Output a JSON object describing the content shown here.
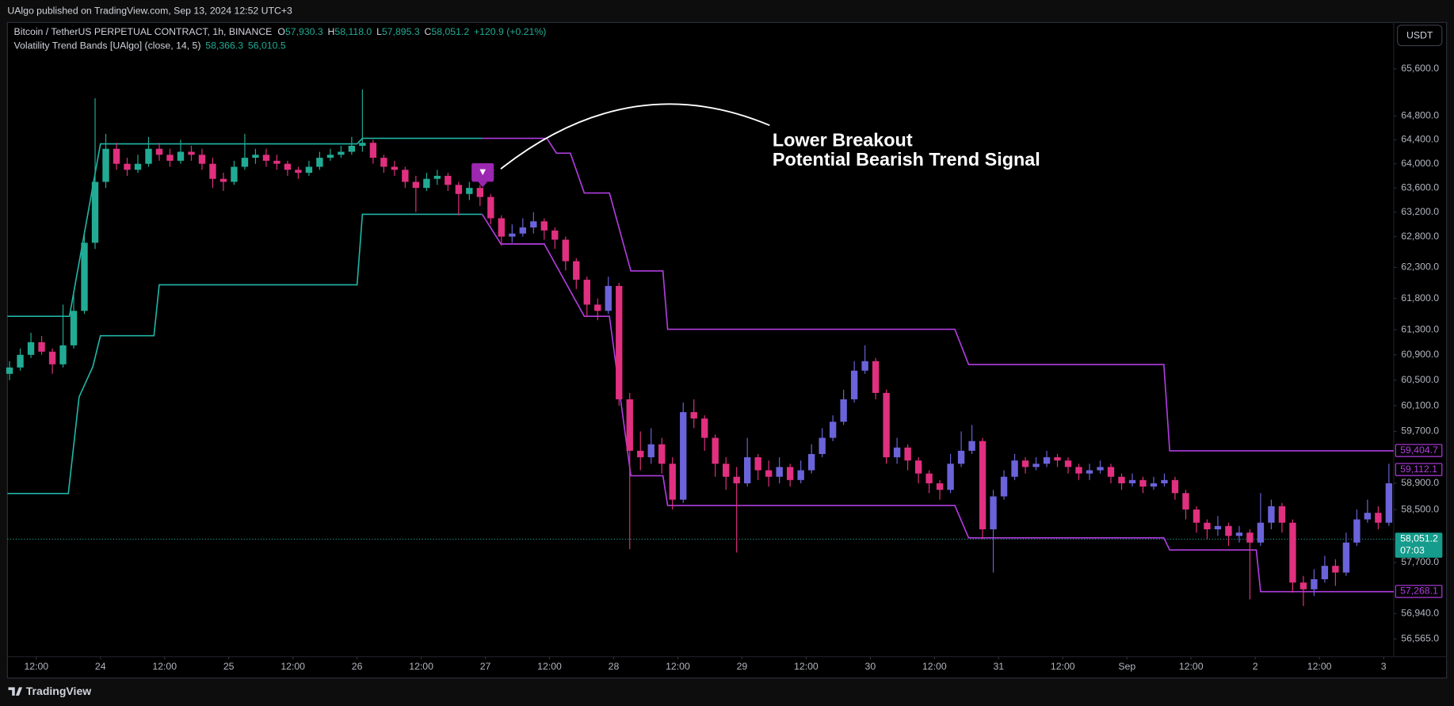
{
  "header": "UAlgo published on TradingView.com, Sep 13, 2024 12:52 UTC+3",
  "footer": "TradingView",
  "currency_button": "USDT",
  "chart_data": {
    "type": "candlestick",
    "title": "Bitcoin / TetherUS PERPETUAL CONTRACT, 1h, BINANCE",
    "ohlc": [
      {
        "label": "O",
        "value": "57,930.3"
      },
      {
        "label": "H",
        "value": "58,118.0"
      },
      {
        "label": "L",
        "value": "57,895.3"
      },
      {
        "label": "C",
        "value": "58,051.2"
      }
    ],
    "change": "+120.9 (+0.21%)",
    "indicator": {
      "title": "Volatility Trend Bands [UAlgo] (close, 14, 5)",
      "values": [
        "58,366.3",
        "56,010.5"
      ]
    },
    "log_scale": true,
    "grid": false,
    "up_color": "#22ab94",
    "up_color_after_signal": "#6b63d9",
    "down_color": "#e0307f",
    "xlim": [
      6.6,
      265.9
    ],
    "ylim": [
      56305,
      66395
    ],
    "xticks": [
      {
        "value": 12,
        "label": "12:00"
      },
      {
        "value": 24,
        "label": "24"
      },
      {
        "value": 36,
        "label": "12:00"
      },
      {
        "value": 48,
        "label": "25"
      },
      {
        "value": 60,
        "label": "12:00"
      },
      {
        "value": 72,
        "label": "26"
      },
      {
        "value": 84,
        "label": "12:00"
      },
      {
        "value": 96,
        "label": "27"
      },
      {
        "value": 108,
        "label": "12:00"
      },
      {
        "value": 120,
        "label": "28"
      },
      {
        "value": 132,
        "label": "12:00"
      },
      {
        "value": 144,
        "label": "29"
      },
      {
        "value": 156,
        "label": "12:00"
      },
      {
        "value": 168,
        "label": "30"
      },
      {
        "value": 180,
        "label": "12:00"
      },
      {
        "value": 192,
        "label": "31"
      },
      {
        "value": 204,
        "label": "12:00"
      },
      {
        "value": 216,
        "label": "Sep"
      },
      {
        "value": 228,
        "label": "12:00"
      },
      {
        "value": 240,
        "label": "2"
      },
      {
        "value": 252,
        "label": "12:00"
      },
      {
        "value": 264,
        "label": "3"
      }
    ],
    "yticks": [
      {
        "value": 65600,
        "label": "65,600.0"
      },
      {
        "value": 64800,
        "label": "64,800.0"
      },
      {
        "value": 64400,
        "label": "64,400.0"
      },
      {
        "value": 64000,
        "label": "64,000.0"
      },
      {
        "value": 63600,
        "label": "63,600.0"
      },
      {
        "value": 63200,
        "label": "63,200.0"
      },
      {
        "value": 62800,
        "label": "62,800.0"
      },
      {
        "value": 62300,
        "label": "62,300.0"
      },
      {
        "value": 61800,
        "label": "61,800.0"
      },
      {
        "value": 61300,
        "label": "61,300.0"
      },
      {
        "value": 60900,
        "label": "60,900.0"
      },
      {
        "value": 60500,
        "label": "60,500.0"
      },
      {
        "value": 60100,
        "label": "60,100.0"
      },
      {
        "value": 59700,
        "label": "59,700.0"
      },
      {
        "value": 58900,
        "label": "58,900.0"
      },
      {
        "value": 58500,
        "label": "58,500.0"
      },
      {
        "value": 57700,
        "label": "57,700.0"
      },
      {
        "value": 56940,
        "label": "56,940.0"
      },
      {
        "value": 56565,
        "label": "56,565.0"
      }
    ],
    "x": [
      7,
      9,
      11,
      13,
      15,
      17,
      19,
      21,
      23,
      25,
      27,
      29,
      31,
      33,
      35,
      37,
      39,
      41,
      43,
      45,
      47,
      49,
      51,
      53,
      55,
      57,
      59,
      61,
      63,
      65,
      67,
      69,
      71,
      73,
      75,
      77,
      79,
      81,
      83,
      85,
      87,
      89,
      91,
      93,
      95,
      97,
      99,
      101,
      103,
      105,
      107,
      109,
      111,
      113,
      115,
      117,
      119,
      121,
      123,
      125,
      127,
      129,
      131,
      133,
      135,
      137,
      139,
      141,
      143,
      145,
      147,
      149,
      151,
      153,
      155,
      157,
      159,
      161,
      163,
      165,
      167,
      169,
      171,
      173,
      175,
      177,
      179,
      181,
      183,
      185,
      187,
      189,
      191,
      193,
      195,
      197,
      199,
      201,
      203,
      205,
      207,
      209,
      211,
      213,
      215,
      217,
      219,
      221,
      223,
      225,
      227,
      229,
      231,
      233,
      235,
      237,
      239,
      241,
      243,
      245,
      247,
      249,
      251,
      253,
      255,
      257,
      259,
      261,
      263,
      265
    ],
    "candles": [
      [
        60600,
        60800,
        60500,
        60700
      ],
      [
        60700,
        61000,
        60650,
        60900
      ],
      [
        60900,
        61250,
        60850,
        61100
      ],
      [
        61100,
        61200,
        60900,
        60950
      ],
      [
        60950,
        61000,
        60600,
        60750
      ],
      [
        60750,
        61700,
        60700,
        61050
      ],
      [
        61050,
        61900,
        61000,
        61600
      ],
      [
        61600,
        62900,
        61550,
        62700
      ],
      [
        62700,
        65100,
        62600,
        63700
      ],
      [
        63700,
        64500,
        63600,
        64250
      ],
      [
        64250,
        64350,
        63900,
        64000
      ],
      [
        64000,
        64100,
        63800,
        63900
      ],
      [
        63900,
        64150,
        63850,
        64000
      ],
      [
        64000,
        64450,
        63950,
        64250
      ],
      [
        64250,
        64350,
        64050,
        64150
      ],
      [
        64150,
        64250,
        63950,
        64050
      ],
      [
        64050,
        64400,
        64000,
        64200
      ],
      [
        64200,
        64300,
        64050,
        64150
      ],
      [
        64150,
        64250,
        63900,
        64000
      ],
      [
        64000,
        64100,
        63600,
        63750
      ],
      [
        63750,
        63850,
        63550,
        63700
      ],
      [
        63700,
        64050,
        63650,
        63950
      ],
      [
        63950,
        64500,
        63900,
        64100
      ],
      [
        64100,
        64250,
        64000,
        64150
      ],
      [
        64150,
        64250,
        63950,
        64050
      ],
      [
        64050,
        64150,
        63900,
        64000
      ],
      [
        64000,
        64050,
        63800,
        63900
      ],
      [
        63900,
        63950,
        63750,
        63850
      ],
      [
        63850,
        64050,
        63800,
        63950
      ],
      [
        63950,
        64200,
        63900,
        64100
      ],
      [
        64100,
        64250,
        64050,
        64150
      ],
      [
        64150,
        64300,
        64100,
        64200
      ],
      [
        64200,
        64450,
        64150,
        64300
      ],
      [
        64300,
        65250,
        64200,
        64350
      ],
      [
        64350,
        64400,
        64000,
        64100
      ],
      [
        64100,
        64150,
        63850,
        63950
      ],
      [
        63950,
        64050,
        63800,
        63900
      ],
      [
        63900,
        63950,
        63600,
        63700
      ],
      [
        63700,
        63800,
        63200,
        63600
      ],
      [
        63600,
        63850,
        63550,
        63750
      ],
      [
        63750,
        63900,
        63650,
        63800
      ],
      [
        63800,
        63850,
        63550,
        63650
      ],
      [
        63650,
        63700,
        63150,
        63500
      ],
      [
        63500,
        63700,
        63400,
        63600
      ],
      [
        63600,
        63650,
        63300,
        63450
      ],
      [
        63450,
        63500,
        63000,
        63100
      ],
      [
        63100,
        63150,
        62650,
        62800
      ],
      [
        62800,
        63000,
        62700,
        62850
      ],
      [
        62850,
        63100,
        62800,
        62950
      ],
      [
        62950,
        63200,
        62850,
        63050
      ],
      [
        63050,
        63100,
        62750,
        62900
      ],
      [
        62900,
        62950,
        62600,
        62750
      ],
      [
        62750,
        62800,
        62250,
        62400
      ],
      [
        62400,
        62450,
        61950,
        62100
      ],
      [
        62100,
        62150,
        61500,
        61700
      ],
      [
        61700,
        61800,
        61450,
        61600
      ],
      [
        61600,
        62150,
        61550,
        62000
      ],
      [
        62000,
        62050,
        60100,
        60200
      ],
      [
        60200,
        60300,
        57900,
        59400
      ],
      [
        59400,
        59700,
        59100,
        59300
      ],
      [
        59300,
        59750,
        59200,
        59500
      ],
      [
        59500,
        59600,
        59050,
        59200
      ],
      [
        59200,
        59300,
        58500,
        58650
      ],
      [
        58650,
        60150,
        58600,
        60000
      ],
      [
        60000,
        60200,
        59750,
        59900
      ],
      [
        59900,
        59950,
        59400,
        59600
      ],
      [
        59600,
        59650,
        59000,
        59200
      ],
      [
        59200,
        59300,
        58800,
        59000
      ],
      [
        59000,
        59150,
        57850,
        58900
      ],
      [
        58900,
        59600,
        58850,
        59300
      ],
      [
        59300,
        59350,
        58950,
        59100
      ],
      [
        59100,
        59250,
        58850,
        59000
      ],
      [
        59000,
        59300,
        58900,
        59150
      ],
      [
        59150,
        59200,
        58850,
        58950
      ],
      [
        58950,
        59250,
        58900,
        59100
      ],
      [
        59100,
        59500,
        59050,
        59350
      ],
      [
        59350,
        59750,
        59300,
        59600
      ],
      [
        59600,
        59950,
        59550,
        59850
      ],
      [
        59850,
        60350,
        59800,
        60200
      ],
      [
        60200,
        60800,
        60150,
        60650
      ],
      [
        60650,
        61050,
        60600,
        60800
      ],
      [
        60800,
        60850,
        60200,
        60300
      ],
      [
        60300,
        60350,
        59200,
        59300
      ],
      [
        59300,
        59600,
        59200,
        59450
      ],
      [
        59450,
        59500,
        59100,
        59250
      ],
      [
        59250,
        59300,
        58900,
        59050
      ],
      [
        59050,
        59100,
        58750,
        58900
      ],
      [
        58900,
        58950,
        58650,
        58800
      ],
      [
        58800,
        59350,
        58750,
        59200
      ],
      [
        59200,
        59700,
        59150,
        59400
      ],
      [
        59400,
        59800,
        59350,
        59550
      ],
      [
        59550,
        59600,
        58050,
        58200
      ],
      [
        58200,
        58800,
        57550,
        58700
      ],
      [
        58700,
        59100,
        58650,
        59000
      ],
      [
        59000,
        59350,
        58950,
        59250
      ],
      [
        59250,
        59300,
        59050,
        59150
      ],
      [
        59150,
        59300,
        59100,
        59200
      ],
      [
        59200,
        59400,
        59150,
        59300
      ],
      [
        59300,
        59350,
        59150,
        59250
      ],
      [
        59250,
        59300,
        59050,
        59150
      ],
      [
        59150,
        59200,
        58950,
        59050
      ],
      [
        59050,
        59200,
        58950,
        59100
      ],
      [
        59100,
        59250,
        59050,
        59150
      ],
      [
        59150,
        59200,
        58900,
        59000
      ],
      [
        59000,
        59050,
        58800,
        58900
      ],
      [
        58900,
        59050,
        58850,
        58950
      ],
      [
        58950,
        59000,
        58750,
        58850
      ],
      [
        58850,
        59000,
        58800,
        58900
      ],
      [
        58900,
        59050,
        58850,
        58950
      ],
      [
        58950,
        59000,
        58650,
        58750
      ],
      [
        58750,
        58800,
        58350,
        58500
      ],
      [
        58500,
        58550,
        58150,
        58300
      ],
      [
        58300,
        58350,
        58050,
        58200
      ],
      [
        58200,
        58400,
        58100,
        58250
      ],
      [
        58250,
        58300,
        57950,
        58100
      ],
      [
        58100,
        58250,
        58000,
        58150
      ],
      [
        58150,
        58200,
        57150,
        58000
      ],
      [
        58000,
        58750,
        57950,
        58300
      ],
      [
        58300,
        58650,
        58200,
        58550
      ],
      [
        58550,
        58600,
        58150,
        58300
      ],
      [
        58300,
        58350,
        57250,
        57400
      ],
      [
        57400,
        57500,
        57050,
        57300
      ],
      [
        57300,
        57600,
        57200,
        57450
      ],
      [
        57450,
        57800,
        57400,
        57650
      ],
      [
        57650,
        57750,
        57350,
        57550
      ],
      [
        57550,
        58150,
        57500,
        58000
      ],
      [
        58000,
        58500,
        57950,
        58350
      ],
      [
        58350,
        58650,
        58300,
        58450
      ],
      [
        58450,
        58550,
        58200,
        58300
      ],
      [
        58300,
        59200,
        58250,
        58900
      ]
    ],
    "series": [
      {
        "color": "#1fb5a6",
        "x": [
          6.6,
          18,
          20,
          22.6,
          24,
          34,
          35,
          72,
          73,
          95.4
        ],
        "values": [
          58745,
          58745,
          60237,
          60717,
          61202,
          61202,
          62018,
          62018,
          63165,
          63165
        ]
      },
      {
        "color": "#1fb5a6",
        "x": [
          6.6,
          18.2,
          24,
          72,
          73,
          95.4
        ],
        "values": [
          61513,
          61513,
          64332,
          64332,
          64425,
          64425
        ]
      },
      {
        "color": "#b13de0",
        "x": [
          95.4,
          107.5,
          109.3,
          111.9,
          114.5,
          119.2,
          123.2,
          129.2,
          130.1,
          183.8,
          186.4,
          222.9,
          224,
          265.9
        ],
        "values": [
          64425,
          64425,
          64177,
          64177,
          63516,
          63516,
          62243,
          62243,
          61306,
          61306,
          60747,
          60747,
          59400,
          59400
        ]
      },
      {
        "color": "#b13de0",
        "x": [
          95.4,
          98.9,
          107,
          114.5,
          119.2,
          123.2,
          129.2,
          130.1,
          183.8,
          186.4,
          222.9,
          224,
          240.2,
          241,
          265.9
        ],
        "values": [
          63165,
          62680,
          62680,
          61513,
          61513,
          59015,
          59015,
          58562,
          58562,
          58070,
          58070,
          57888,
          57888,
          57264,
          57264
        ]
      }
    ],
    "signal": {
      "x": 95.5,
      "y": 63840,
      "label": "▼",
      "color": "#9c27b0"
    },
    "annotation": [
      "Lower Breakout",
      "Potential Bearish Trend Signal"
    ],
    "price_labels": [
      {
        "value": 59404.7,
        "label": "59,404.7",
        "color": "#b13de0"
      },
      {
        "value": 59112.1,
        "label": "59,112.1",
        "color": "#b13de0"
      },
      {
        "value": 58051.2,
        "label": "58,051.2",
        "sub": "07:03",
        "color": "#159c8c",
        "filled": true
      },
      {
        "value": 57268.1,
        "label": "57,268.1",
        "color": "#b13de0"
      }
    ]
  }
}
